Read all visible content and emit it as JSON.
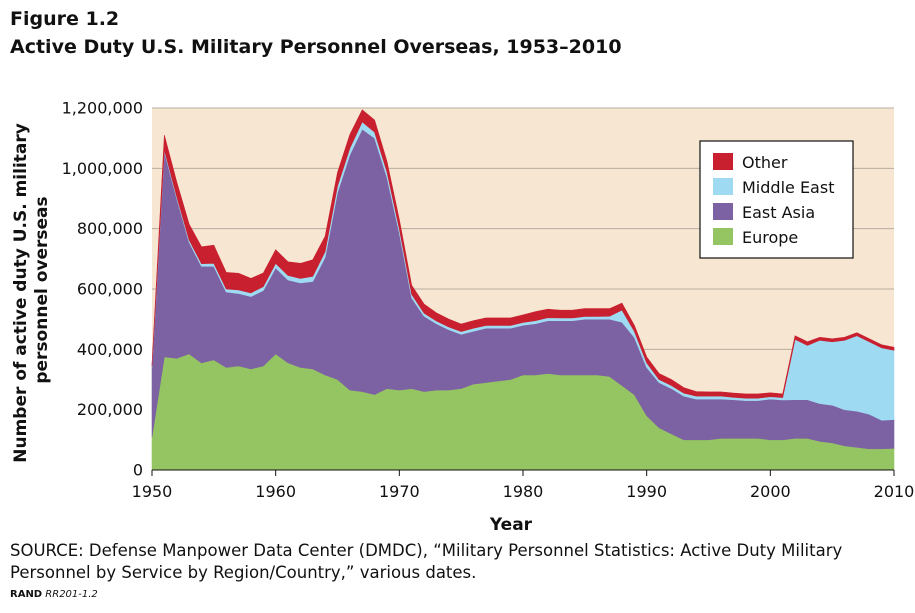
{
  "figure_label": "Figure 1.2",
  "title": "Active Duty U.S. Military Personnel Overseas, 1953–2010",
  "source": "SOURCE: Defense Manpower Data Center (DMDC), “Military Personnel Statistics: Active Duty Military Personnel by Service by Region/Country,” various dates.",
  "rand_label": "RAND",
  "report_id": "RR201-1.2",
  "colors": {
    "Europe": "#95c562",
    "East Asia": "#7d62a3",
    "Middle East": "#9edbf2",
    "Other": "#c8202f",
    "plot_background": "#f6e6d2",
    "grid": "#b9ad9f"
  },
  "chart_data": {
    "type": "area",
    "stacked": true,
    "xlabel": "Year",
    "ylabel": "Number of active duty U.S. military personnel overseas",
    "xlim": [
      1950,
      2010
    ],
    "ylim": [
      0,
      1200000
    ],
    "xticks": [
      1950,
      1960,
      1970,
      1980,
      1990,
      2000,
      2010
    ],
    "yticks": [
      0,
      200000,
      400000,
      600000,
      800000,
      1000000,
      1200000
    ],
    "xtick_labels": [
      "1950",
      "1960",
      "1970",
      "1980",
      "1990",
      "2000",
      "2010"
    ],
    "ytick_labels": [
      "0",
      "200,000",
      "400,000",
      "600,000",
      "800,000",
      "1,000,000",
      "1,200,000"
    ],
    "grid": "horizontal",
    "legend_position": "top-right",
    "x": [
      1950,
      1951,
      1952,
      1953,
      1954,
      1955,
      1956,
      1957,
      1958,
      1959,
      1960,
      1961,
      1962,
      1963,
      1964,
      1965,
      1966,
      1967,
      1968,
      1969,
      1970,
      1971,
      1972,
      1973,
      1974,
      1975,
      1976,
      1977,
      1978,
      1979,
      1980,
      1981,
      1982,
      1983,
      1984,
      1985,
      1986,
      1987,
      1988,
      1989,
      1990,
      1991,
      1992,
      1993,
      1994,
      1995,
      1996,
      1997,
      1998,
      1999,
      2000,
      2001,
      2002,
      2003,
      2004,
      2005,
      2006,
      2007,
      2008,
      2009,
      2010
    ],
    "series": [
      {
        "name": "Europe",
        "values": [
          110000,
          375000,
          370000,
          385000,
          355000,
          365000,
          340000,
          345000,
          335000,
          345000,
          385000,
          355000,
          340000,
          335000,
          315000,
          300000,
          265000,
          260000,
          250000,
          270000,
          265000,
          270000,
          260000,
          265000,
          265000,
          270000,
          285000,
          290000,
          295000,
          300000,
          315000,
          315000,
          320000,
          315000,
          315000,
          315000,
          315000,
          310000,
          280000,
          250000,
          180000,
          140000,
          120000,
          100000,
          100000,
          100000,
          105000,
          105000,
          105000,
          105000,
          100000,
          100000,
          105000,
          105000,
          95000,
          90000,
          80000,
          75000,
          70000,
          70000,
          72000
        ]
      },
      {
        "name": "East Asia",
        "values": [
          230000,
          680000,
          530000,
          370000,
          320000,
          310000,
          250000,
          240000,
          240000,
          250000,
          285000,
          275000,
          280000,
          290000,
          390000,
          620000,
          780000,
          870000,
          850000,
          700000,
          520000,
          300000,
          250000,
          220000,
          200000,
          180000,
          175000,
          180000,
          175000,
          170000,
          165000,
          170000,
          175000,
          180000,
          180000,
          185000,
          185000,
          190000,
          210000,
          190000,
          160000,
          150000,
          150000,
          145000,
          135000,
          135000,
          130000,
          128000,
          125000,
          125000,
          135000,
          132000,
          128000,
          128000,
          125000,
          125000,
          120000,
          120000,
          115000,
          95000,
          95000
        ]
      },
      {
        "name": "Middle East",
        "values": [
          3000,
          6000,
          6000,
          8000,
          9000,
          10000,
          10000,
          12000,
          12000,
          13000,
          15000,
          15000,
          15000,
          17000,
          19000,
          21000,
          22000,
          24000,
          20000,
          18000,
          14000,
          12000,
          10000,
          9000,
          9000,
          9000,
          10000,
          9000,
          9000,
          9000,
          9000,
          10000,
          10000,
          9000,
          9000,
          9000,
          9000,
          10000,
          40000,
          20000,
          15000,
          10000,
          10000,
          10000,
          10000,
          10000,
          10000,
          8000,
          8000,
          8000,
          8000,
          8000,
          200000,
          180000,
          210000,
          210000,
          230000,
          250000,
          240000,
          240000,
          230000
        ]
      },
      {
        "name": "Other",
        "values": [
          7000,
          49000,
          49000,
          52000,
          56000,
          60000,
          55000,
          55000,
          48000,
          45000,
          45000,
          45000,
          50000,
          55000,
          51000,
          45000,
          45000,
          40000,
          40000,
          35000,
          31000,
          30000,
          30000,
          27000,
          26000,
          25000,
          25000,
          25000,
          25000,
          25000,
          25000,
          30000,
          28000,
          26000,
          26000,
          26000,
          26000,
          25000,
          23000,
          20000,
          20000,
          20000,
          20000,
          18000,
          15000,
          14000,
          14000,
          14000,
          14000,
          14000,
          13000,
          12000,
          12000,
          12000,
          10000,
          10000,
          10000,
          10000,
          10000,
          10000,
          10000
        ]
      }
    ]
  }
}
